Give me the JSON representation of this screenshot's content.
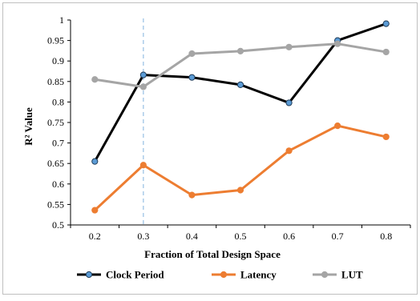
{
  "chart_data": {
    "type": "line",
    "x": [
      0.2,
      0.3,
      0.4,
      0.5,
      0.6,
      0.7,
      0.8
    ],
    "x_tick_labels": [
      "0.2",
      "0.3",
      "0.4",
      "0.5",
      "0.6",
      "0.7",
      "0.8"
    ],
    "y_ticks": [
      0.5,
      0.55,
      0.6,
      0.65,
      0.7,
      0.75,
      0.8,
      0.85,
      0.9,
      0.95,
      1.0
    ],
    "y_tick_labels": [
      "0.5",
      "0.55",
      "0.6",
      "0.65",
      "0.7",
      "0.75",
      "0.8",
      "0.85",
      "0.9",
      "0.95",
      "1"
    ],
    "ylim": [
      0.5,
      1.0
    ],
    "xlabel": "Fraction of Total Design Space",
    "ylabel": "R² Value",
    "grid": false,
    "legend_position": "bottom",
    "reference_line": {
      "x": 0.3,
      "style": "dashed",
      "color": "#9DC3E6"
    },
    "series": [
      {
        "name": "Clock Period",
        "color": "#000000",
        "marker_fill": "#5B9BD5",
        "values": [
          0.655,
          0.866,
          0.86,
          0.842,
          0.798,
          0.95,
          0.991
        ]
      },
      {
        "name": "Latency",
        "color": "#ED7D31",
        "marker_fill": "#ED7D31",
        "values": [
          0.536,
          0.646,
          0.573,
          0.585,
          0.681,
          0.742,
          0.715
        ]
      },
      {
        "name": "LUT",
        "color": "#A5A5A5",
        "marker_fill": "#A5A5A5",
        "values": [
          0.855,
          0.837,
          0.918,
          0.924,
          0.934,
          0.942,
          0.922
        ]
      }
    ]
  }
}
